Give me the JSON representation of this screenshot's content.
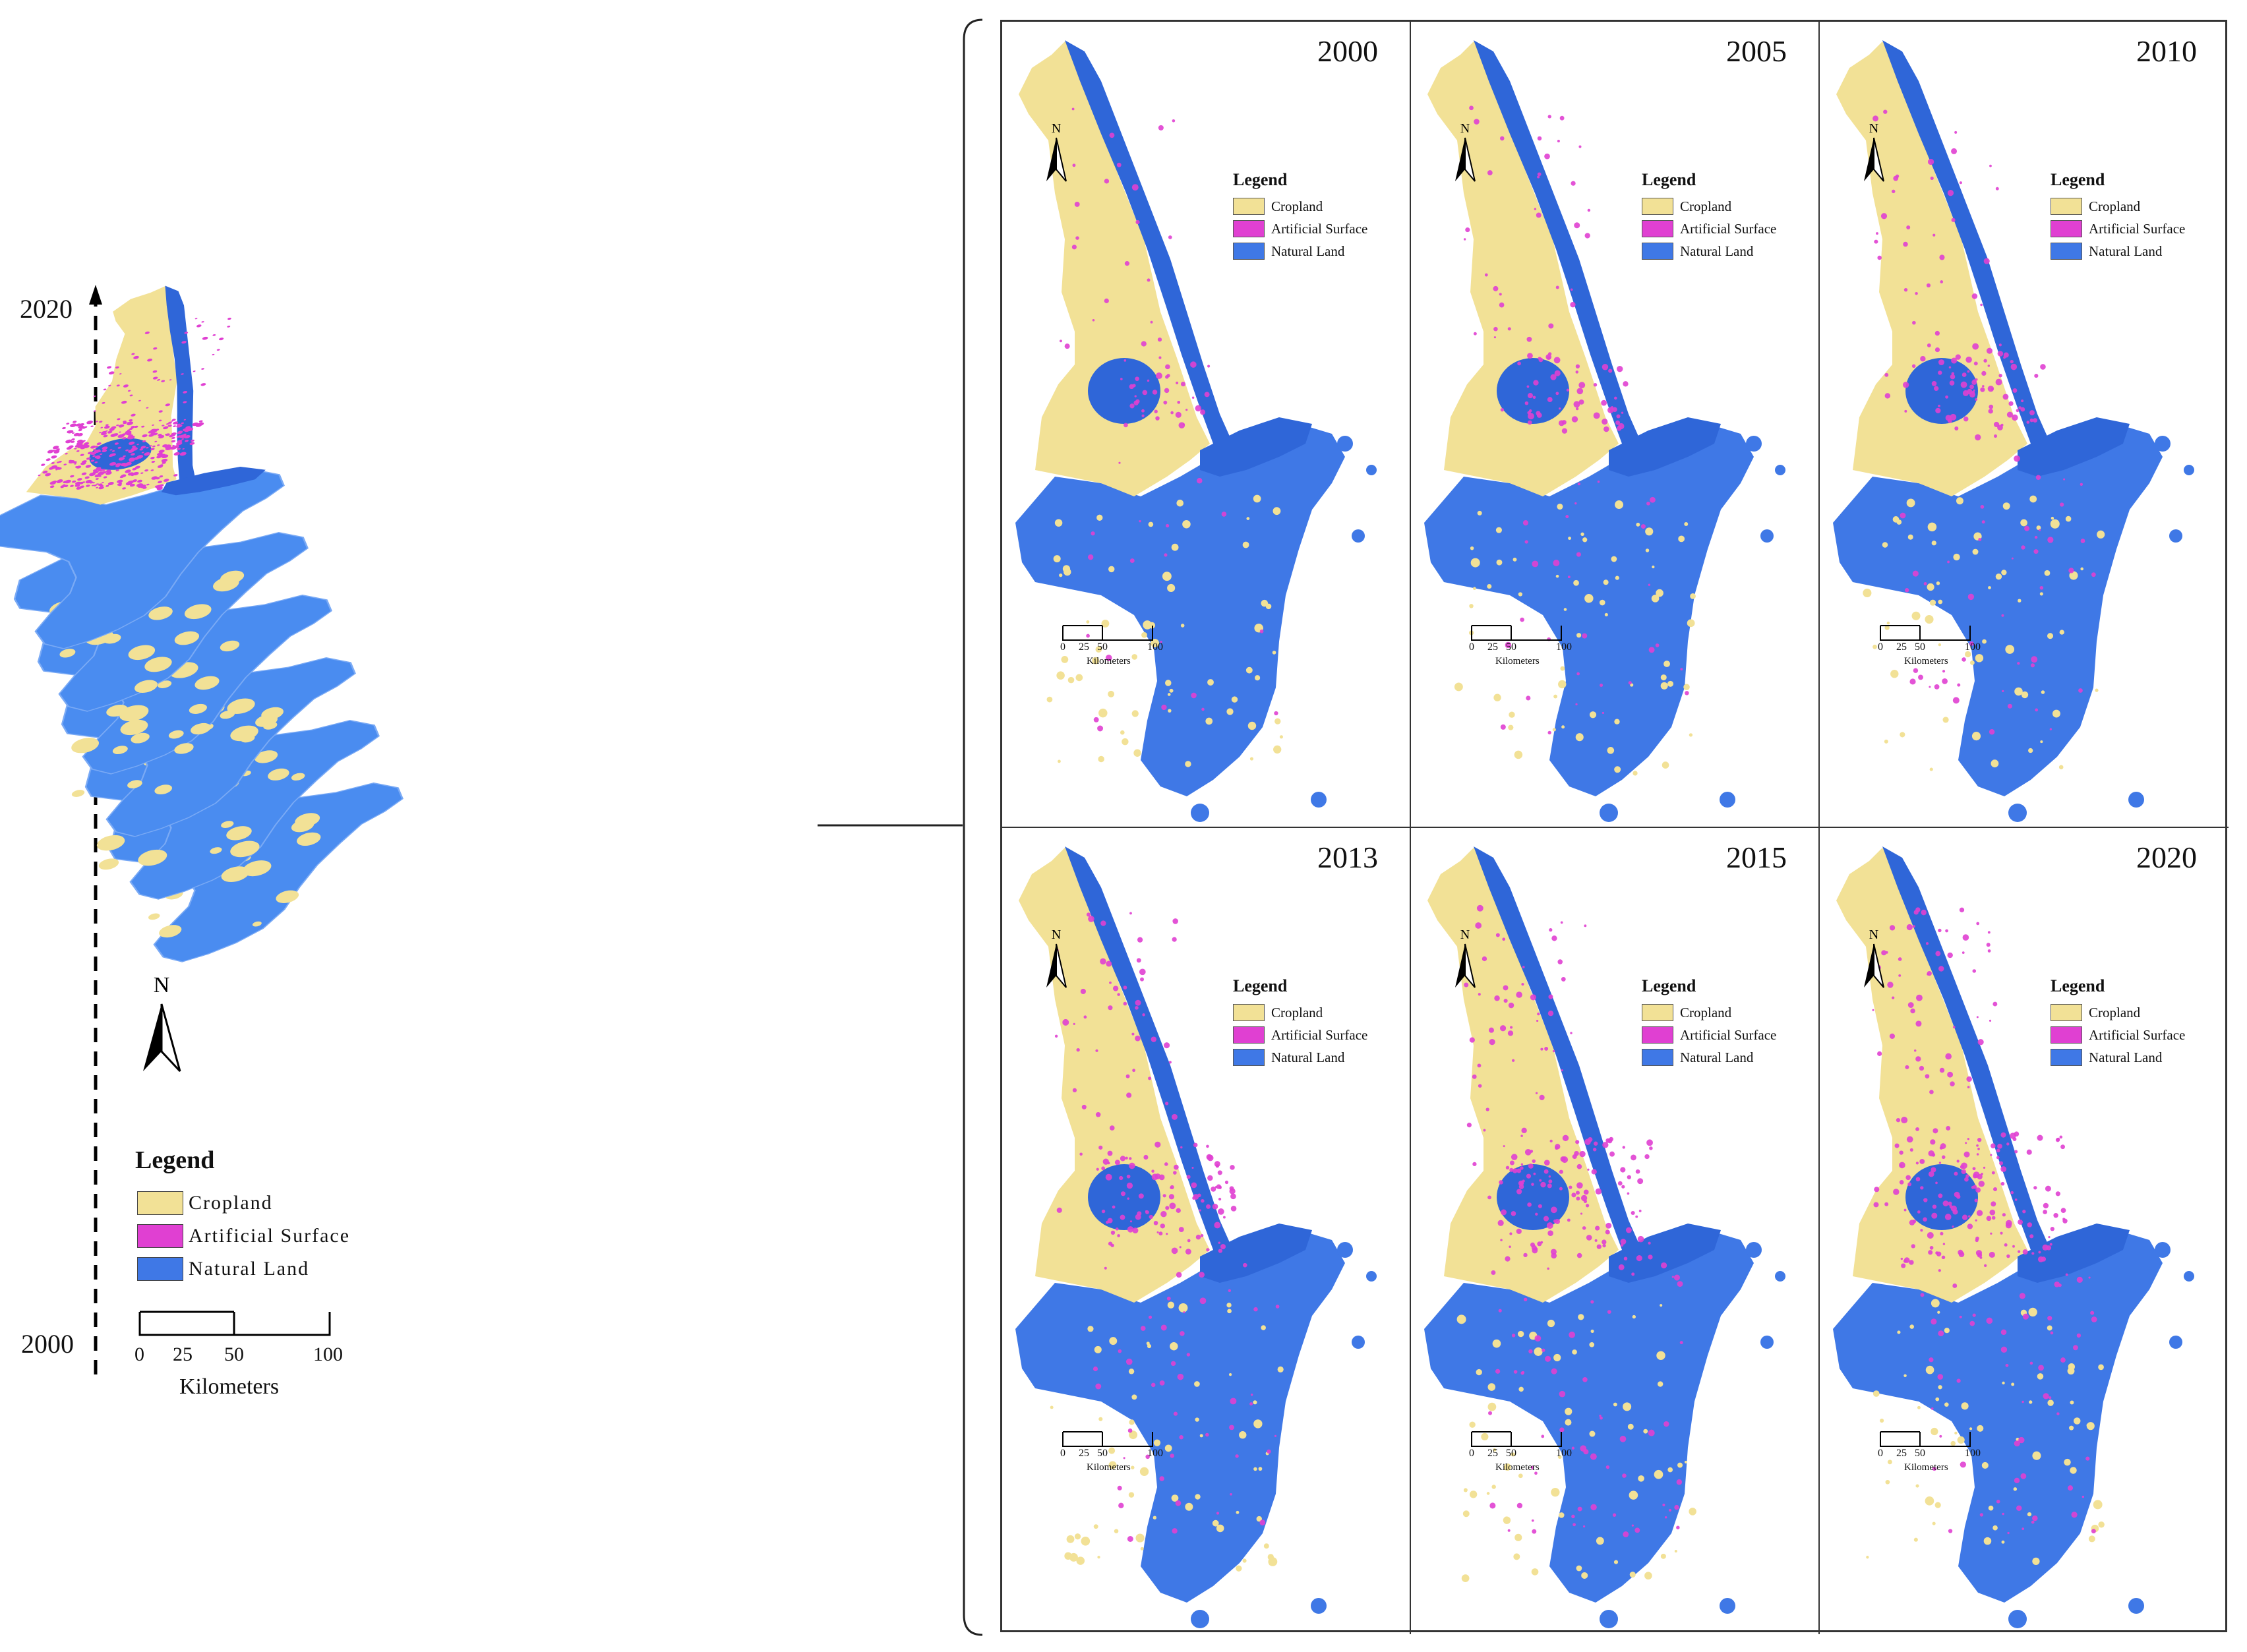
{
  "colors": {
    "cropland": "#f2e196",
    "artificial_surface": "#e040d2",
    "natural_land": "#3f78e6",
    "natural_land_light": "#4a8cf0",
    "water": "#2f66d8"
  },
  "left_panel": {
    "axis_top_label": "2020",
    "axis_bottom_label": "2000",
    "legend": {
      "title": "Legend",
      "items": [
        {
          "label": "Cropland",
          "color_key": "cropland"
        },
        {
          "label": "Artificial Surface",
          "color_key": "artificial_surface"
        },
        {
          "label": "Natural Land",
          "color_key": "natural_land"
        }
      ]
    },
    "north_label": "N",
    "scale": {
      "ticks": [
        "0",
        "25",
        "50",
        "100"
      ],
      "unit": "Kilometers"
    }
  },
  "panels": [
    {
      "year": "2000",
      "urban_level": 0.15
    },
    {
      "year": "2005",
      "urban_level": 0.3
    },
    {
      "year": "2010",
      "urban_level": 0.45
    },
    {
      "year": "2013",
      "urban_level": 0.6
    },
    {
      "year": "2015",
      "urban_level": 0.75
    },
    {
      "year": "2020",
      "urban_level": 0.9
    }
  ],
  "panel_legend": {
    "title": "Legend",
    "items": [
      "Cropland",
      "Artificial Surface",
      "Natural Land"
    ]
  },
  "panel_north_label": "N",
  "panel_scale": {
    "ticks": [
      "0",
      "25",
      "50",
      "100"
    ],
    "unit": "Kilometers"
  }
}
